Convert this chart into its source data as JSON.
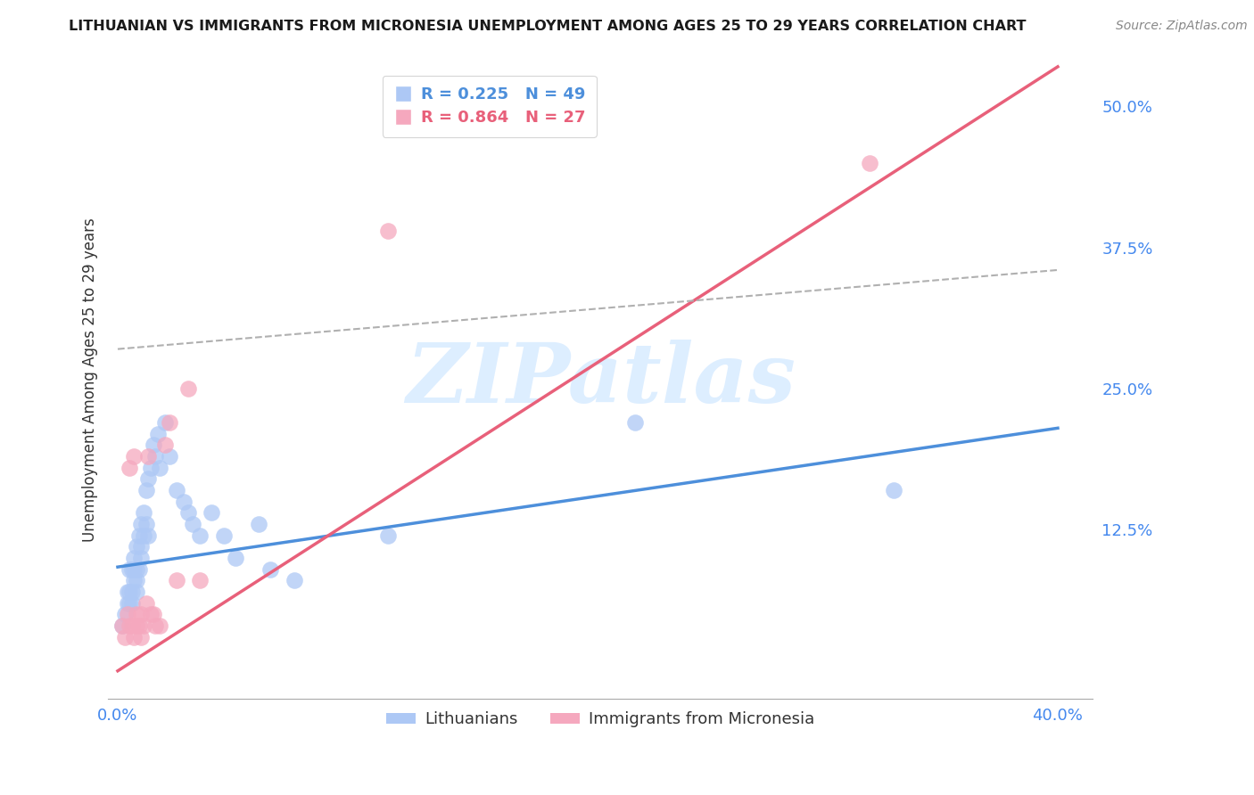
{
  "title": "LITHUANIAN VS IMMIGRANTS FROM MICRONESIA UNEMPLOYMENT AMONG AGES 25 TO 29 YEARS CORRELATION CHART",
  "source": "Source: ZipAtlas.com",
  "ylabel": "Unemployment Among Ages 25 to 29 years",
  "y_ticks": [
    0.0,
    0.125,
    0.25,
    0.375,
    0.5
  ],
  "y_tick_labels": [
    "",
    "12.5%",
    "25.0%",
    "37.5%",
    "50.0%"
  ],
  "x_ticks": [
    0.0,
    0.1,
    0.2,
    0.3,
    0.4
  ],
  "x_tick_labels": [
    "0.0%",
    "",
    "",
    "",
    "40.0%"
  ],
  "blue_color": "#adc8f5",
  "pink_color": "#f5a8be",
  "blue_line_color": "#4d8fdb",
  "pink_line_color": "#e8607a",
  "dashed_line_color": "#b0b0b0",
  "background_color": "#ffffff",
  "watermark": "ZIPatlas",
  "watermark_color": "#ddeeff",
  "blue_scatter_x": [
    0.002,
    0.003,
    0.004,
    0.004,
    0.005,
    0.005,
    0.005,
    0.006,
    0.006,
    0.006,
    0.007,
    0.007,
    0.007,
    0.008,
    0.008,
    0.008,
    0.008,
    0.009,
    0.009,
    0.01,
    0.01,
    0.01,
    0.011,
    0.011,
    0.012,
    0.012,
    0.013,
    0.013,
    0.014,
    0.015,
    0.016,
    0.017,
    0.018,
    0.02,
    0.022,
    0.025,
    0.028,
    0.03,
    0.032,
    0.035,
    0.04,
    0.045,
    0.05,
    0.06,
    0.065,
    0.075,
    0.115,
    0.22,
    0.33
  ],
  "blue_scatter_y": [
    0.04,
    0.05,
    0.06,
    0.07,
    0.06,
    0.07,
    0.09,
    0.06,
    0.07,
    0.09,
    0.08,
    0.09,
    0.1,
    0.07,
    0.08,
    0.09,
    0.11,
    0.09,
    0.12,
    0.1,
    0.11,
    0.13,
    0.12,
    0.14,
    0.13,
    0.16,
    0.12,
    0.17,
    0.18,
    0.2,
    0.19,
    0.21,
    0.18,
    0.22,
    0.19,
    0.16,
    0.15,
    0.14,
    0.13,
    0.12,
    0.14,
    0.12,
    0.1,
    0.13,
    0.09,
    0.08,
    0.12,
    0.22,
    0.16
  ],
  "pink_scatter_x": [
    0.002,
    0.003,
    0.004,
    0.005,
    0.005,
    0.006,
    0.007,
    0.007,
    0.008,
    0.008,
    0.009,
    0.01,
    0.01,
    0.011,
    0.012,
    0.013,
    0.014,
    0.015,
    0.016,
    0.018,
    0.02,
    0.022,
    0.025,
    0.03,
    0.035,
    0.115,
    0.32
  ],
  "pink_scatter_y": [
    0.04,
    0.03,
    0.05,
    0.04,
    0.18,
    0.04,
    0.03,
    0.19,
    0.04,
    0.05,
    0.04,
    0.03,
    0.05,
    0.04,
    0.06,
    0.19,
    0.05,
    0.05,
    0.04,
    0.04,
    0.2,
    0.22,
    0.08,
    0.25,
    0.08,
    0.39,
    0.45
  ],
  "blue_line_x": [
    0.0,
    0.4
  ],
  "blue_line_y": [
    0.092,
    0.215
  ],
  "pink_line_x": [
    0.0,
    0.4
  ],
  "pink_line_y": [
    0.0,
    0.535
  ],
  "dashed_line_x": [
    0.0,
    0.4
  ],
  "dashed_line_y": [
    0.285,
    0.355
  ],
  "ylim": [
    -0.025,
    0.54
  ],
  "xlim": [
    -0.004,
    0.415
  ],
  "legend_r1": "R = 0.225",
  "legend_n1": "N = 49",
  "legend_r2": "R = 0.864",
  "legend_n2": "N = 27"
}
